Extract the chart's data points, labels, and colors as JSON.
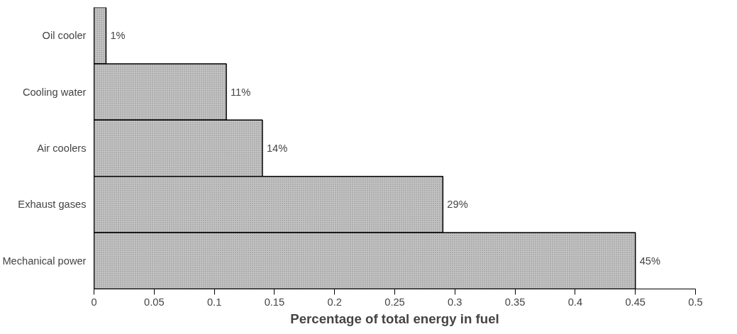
{
  "chart_data": {
    "type": "bar",
    "orientation": "horizontal",
    "xlabel": "Percentage of total energy in fuel",
    "categories": [
      "Oil cooler",
      "Cooling water",
      "Air coolers",
      "Exhaust gases",
      "Mechanical power"
    ],
    "values": [
      0.01,
      0.11,
      0.14,
      0.29,
      0.45
    ],
    "value_labels": [
      "1%",
      "11%",
      "14%",
      "29%",
      "45%"
    ],
    "color": "#c4c4c4",
    "xlim": [
      0,
      0.5
    ],
    "xticks": [
      0,
      0.05,
      0.1,
      0.15,
      0.2,
      0.25,
      0.3,
      0.35,
      0.4,
      0.45,
      0.5
    ],
    "grid": false
  }
}
